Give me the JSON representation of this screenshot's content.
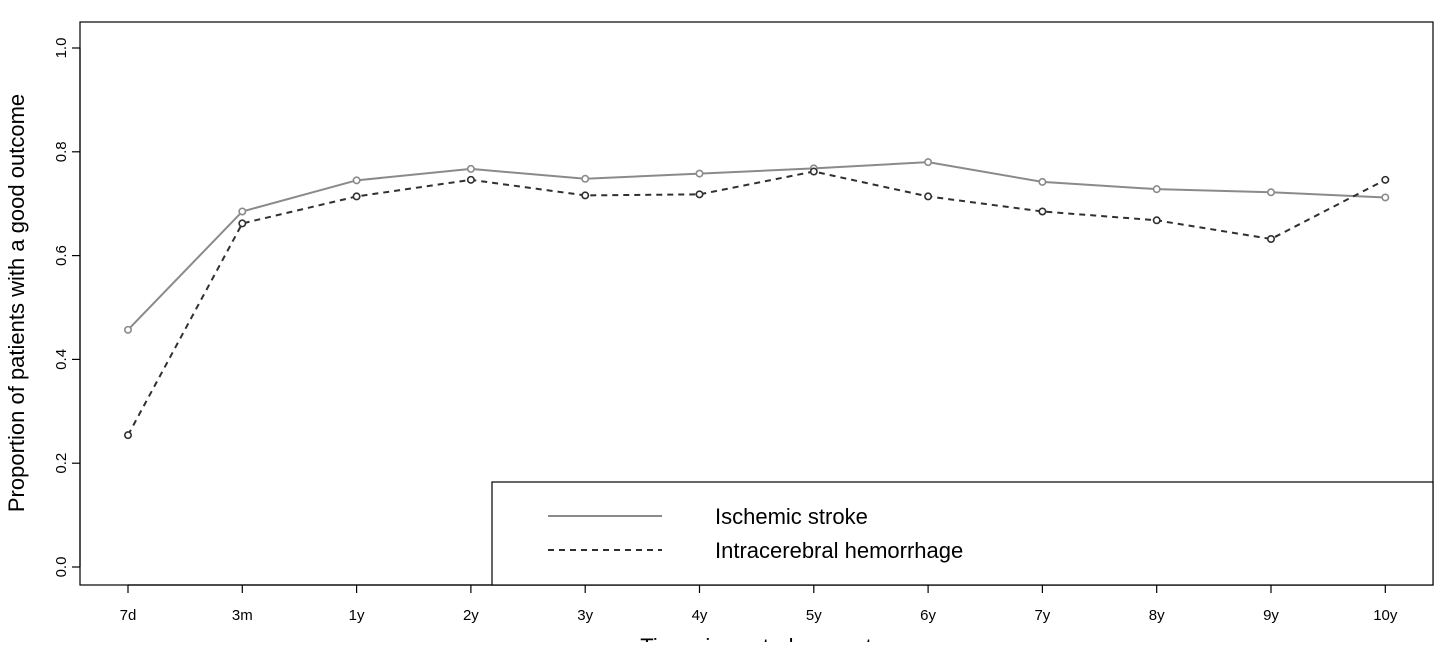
{
  "chart_data": {
    "type": "line",
    "title": "",
    "xlabel": "Time since stroke onset",
    "ylabel": "Proportion of patients with a good outcome",
    "categories": [
      "7d",
      "3m",
      "1y",
      "2y",
      "3y",
      "4y",
      "5y",
      "6y",
      "7y",
      "8y",
      "9y",
      "10y"
    ],
    "ylim": [
      0.0,
      1.0
    ],
    "yticks": [
      "0.0",
      "0.2",
      "0.4",
      "0.6",
      "0.8",
      "1.0"
    ],
    "grid": false,
    "legend_position": "bottom-right",
    "series": [
      {
        "name": "Ischemic stroke",
        "line_style": "solid",
        "color": "#8a8a8a",
        "values": [
          0.457,
          0.685,
          0.745,
          0.767,
          0.748,
          0.758,
          0.768,
          0.78,
          0.742,
          0.728,
          0.722,
          0.712
        ]
      },
      {
        "name": "Intracerebral hemorrhage",
        "line_style": "dashed",
        "color": "#303030",
        "values": [
          0.254,
          0.662,
          0.714,
          0.746,
          0.716,
          0.718,
          0.762,
          0.714,
          0.685,
          0.668,
          0.632,
          0.746
        ]
      }
    ]
  }
}
